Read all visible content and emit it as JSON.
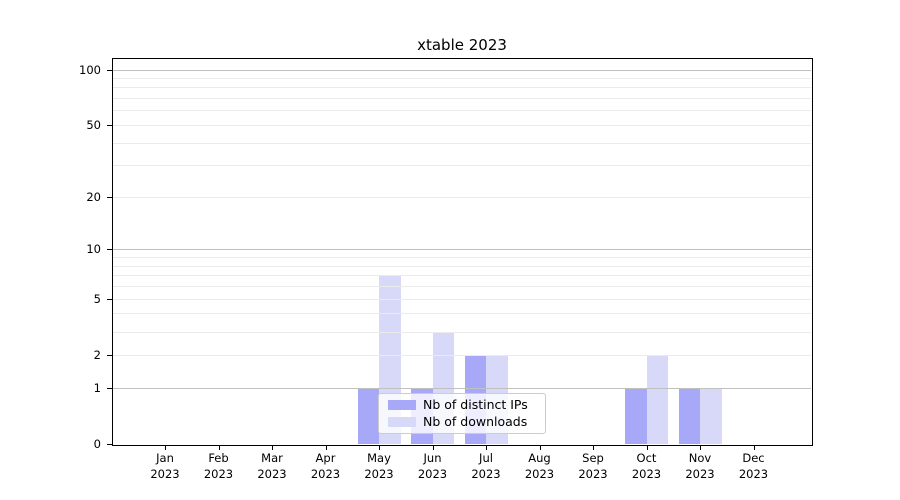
{
  "title": "xtable 2023",
  "legend": {
    "items": [
      {
        "label": "Nb of distinct IPs",
        "color": "#a8a8f8"
      },
      {
        "label": "Nb of downloads",
        "color": "#d8d8f8"
      }
    ]
  },
  "chart_data": {
    "type": "bar",
    "title": "xtable 2023",
    "categories": [
      "Jan 2023",
      "Feb 2023",
      "Mar 2023",
      "Apr 2023",
      "May 2023",
      "Jun 2023",
      "Jul 2023",
      "Aug 2023",
      "Sep 2023",
      "Oct 2023",
      "Nov 2023",
      "Dec 2023"
    ],
    "series": [
      {
        "name": "Nb of distinct IPs",
        "color": "#a8a8f8",
        "values": [
          0,
          0,
          0,
          0,
          1,
          1,
          2,
          0,
          0,
          1,
          1,
          0
        ]
      },
      {
        "name": "Nb of downloads",
        "color": "#d8d8f8",
        "values": [
          0,
          0,
          0,
          0,
          7,
          3,
          2,
          0,
          0,
          2,
          1,
          0
        ]
      }
    ],
    "yscale": "log1p",
    "ylim": [
      0,
      114
    ],
    "yticks": [
      0,
      1,
      2,
      5,
      10,
      20,
      50,
      100
    ],
    "decade_gridlines": [
      1,
      10,
      100
    ],
    "minor_gridlines": [
      2,
      3,
      4,
      5,
      6,
      7,
      8,
      9,
      20,
      30,
      40,
      50,
      60,
      70,
      80,
      90
    ],
    "grid": "horizontal",
    "legend_position": "inside bottom-center",
    "axis_color": "#000000",
    "decade_gridline_color": "#c0c0c0",
    "minor_gridline_color": "#ebebeb"
  }
}
